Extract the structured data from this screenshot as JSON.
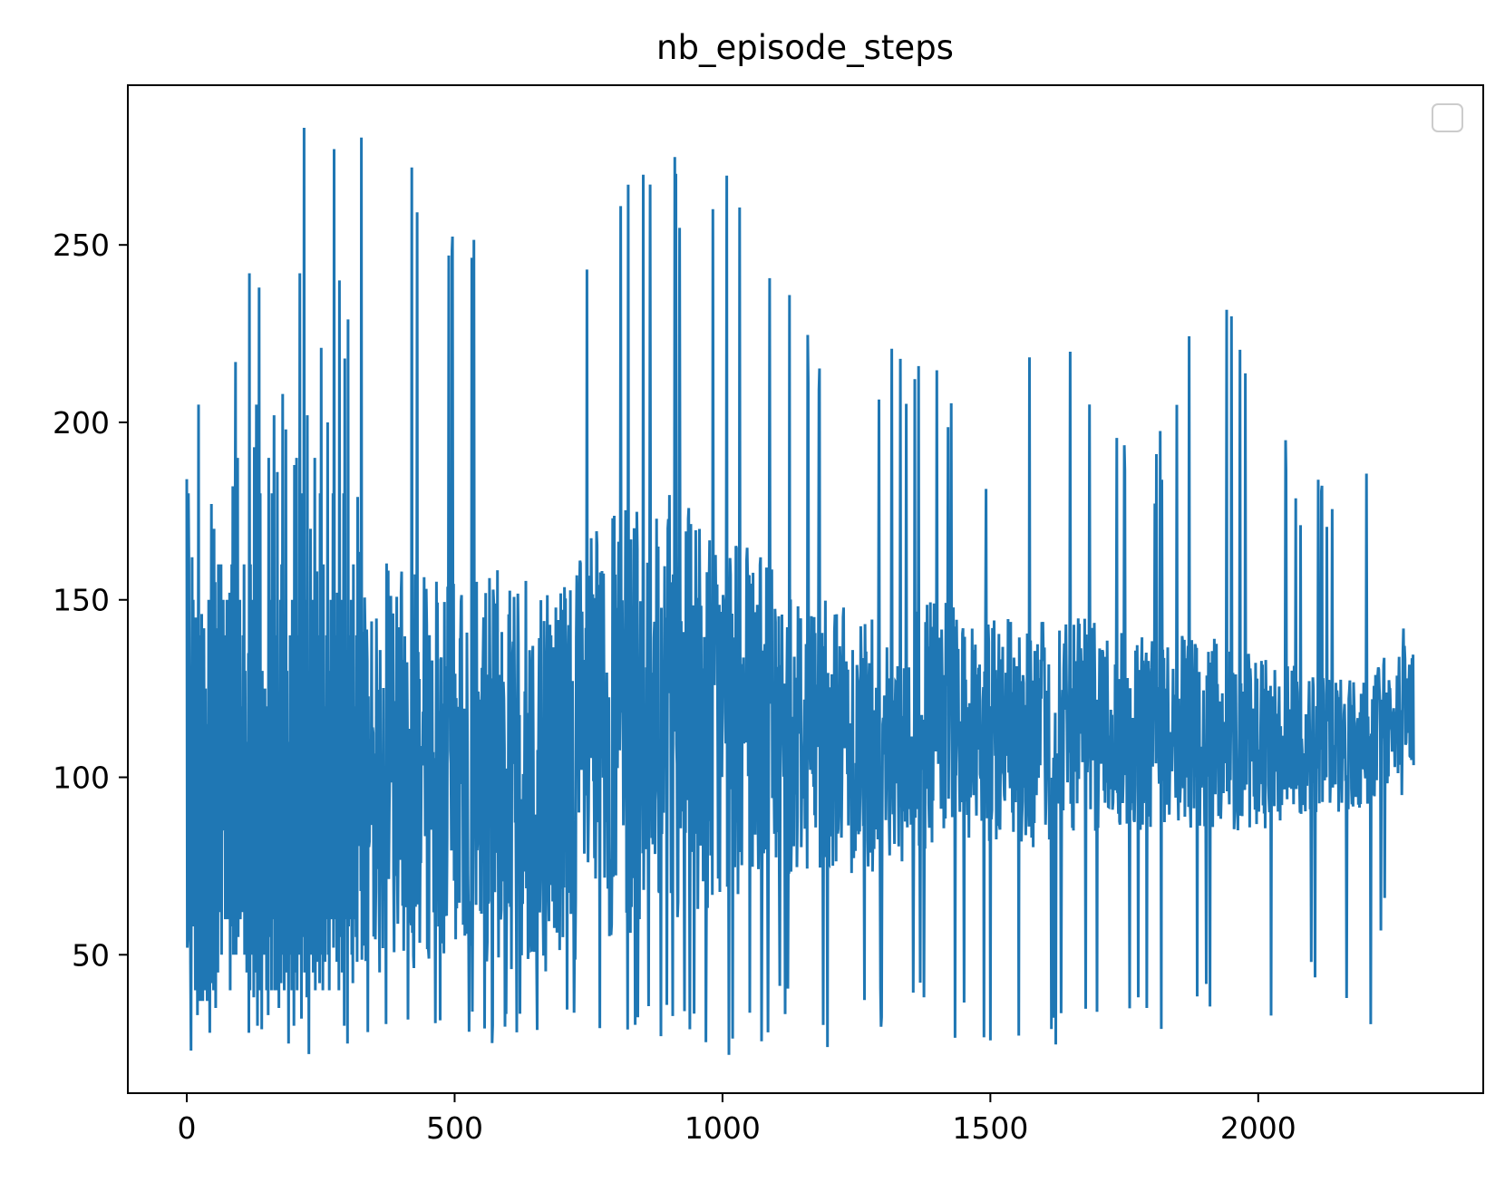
{
  "chart_data": {
    "type": "line",
    "title": "nb_episode_steps",
    "xlabel": "",
    "ylabel": "",
    "xlim": [
      -110,
      2420
    ],
    "ylim": [
      11,
      295
    ],
    "x_ticks": [
      0,
      500,
      1000,
      1500,
      2000
    ],
    "y_ticks": [
      50,
      100,
      150,
      200,
      250
    ],
    "x_tick_labels": [
      "0",
      "500",
      "1000",
      "1500",
      "2000"
    ],
    "y_tick_labels": [
      "50",
      "100",
      "150",
      "200",
      "250"
    ],
    "grid": false,
    "legend": {
      "placement": "top-right",
      "entries": []
    },
    "colors": {
      "series": "#1f77b4",
      "axes": "#000000",
      "legend_border": "#cccccc"
    },
    "series": [
      {
        "x_start": 0,
        "x_step": 1,
        "values": [
          184,
          52,
          55,
          180,
          160,
          70,
          120,
          48,
          23,
          100,
          162,
          58,
          150,
          72,
          130,
          95,
          40,
          145,
          60,
          110,
          33,
          78,
          205,
          45,
          140,
          37,
          120,
          90,
          146,
          60,
          37,
          100,
          142,
          88,
          40,
          125,
          80,
          60,
          37,
          115,
          66,
          150,
          60,
          28,
          120,
          96,
          177,
          42,
          85,
          160,
          40,
          170,
          60,
          155,
          35,
          100,
          142,
          75,
          45,
          160,
          62,
          105,
          120,
          68,
          160,
          50,
          130,
          90,
          150,
          85,
          100,
          140,
          60,
          120,
          80,
          150,
          100,
          60,
          115,
          90,
          152,
          40,
          130,
          70,
          160,
          58,
          182,
          50,
          120,
          90,
          160,
          217,
          50,
          140,
          70,
          190,
          55,
          110,
          80,
          150,
          60,
          100,
          120,
          62,
          90,
          140,
          70,
          160,
          50,
          130,
          80,
          100,
          45,
          110,
          60,
          135,
          28,
          242,
          40,
          160,
          70,
          120,
          50,
          100,
          150,
          38,
          193,
          60,
          120,
          45,
          205,
          90,
          30,
          150,
          70,
          238,
          40,
          180,
          60,
          110,
          29,
          130,
          50,
          90,
          120,
          60,
          125,
          50,
          110,
          40,
          80,
          120,
          33,
          190,
          55,
          100,
          70,
          150,
          40,
          180,
          90,
          60,
          120,
          202,
          40,
          140,
          70,
          110,
          40,
          186,
          60,
          100,
          35,
          120,
          70,
          150,
          42,
          160,
          90,
          208,
          50,
          120,
          40,
          100,
          75,
          198,
          45,
          130,
          60,
          90,
          25,
          110,
          50,
          140,
          70,
          100,
          40,
          150,
          60,
          120,
          30,
          188,
          60,
          100,
          45,
          190,
          40,
          120,
          70,
          140,
          50,
          242,
          60,
          100,
          32,
          180,
          55,
          120,
          70,
          283,
          45,
          110,
          60,
          150,
          38,
          202,
          60,
          100,
          22,
          130,
          70,
          170,
          50,
          100,
          60,
          150,
          45,
          110,
          70,
          190,
          40,
          120,
          60,
          158,
          48,
          140,
          70,
          100,
          42,
          180,
          60,
          221,
          50,
          110,
          40,
          160,
          70,
          120,
          48,
          100,
          60,
          140,
          75,
          200,
          50,
          130,
          40,
          110,
          60,
          150,
          70,
          100,
          60,
          180,
          52,
          277,
          60,
          140,
          70,
          100,
          48,
          152,
          60,
          110,
          40,
          240,
          55,
          100,
          70,
          150,
          45,
          120,
          60,
          180,
          30,
          218,
          60,
          120,
          70,
          100,
          25,
          229,
          58,
          140,
          60,
          110,
          70,
          150,
          50,
          100,
          42,
          160,
          70,
          120,
          60,
          100,
          55,
          140,
          48,
          179
        ]
      }
    ],
    "sampled_envelope": {
      "x_centers": [
        0,
        100,
        200,
        300,
        400,
        500,
        600,
        700,
        800,
        900,
        1000,
        1100,
        1200,
        1300,
        1400,
        1500,
        1600,
        1700,
        1800,
        1900,
        2000,
        2100,
        2200,
        2290
      ],
      "min": [
        22,
        27,
        28,
        22,
        25,
        30,
        22,
        22,
        22,
        25,
        18,
        28,
        22,
        28,
        30,
        17,
        17,
        28,
        28,
        28,
        30,
        40,
        20,
        102
      ],
      "max": [
        205,
        217,
        242,
        283,
        277,
        265,
        254,
        249,
        275,
        275,
        274,
        246,
        216,
        221,
        227,
        183,
        250,
        216,
        185,
        259,
        212,
        183,
        197,
        146
      ],
      "typical_low": [
        55,
        55,
        50,
        45,
        45,
        50,
        45,
        45,
        55,
        55,
        65,
        70,
        75,
        70,
        80,
        80,
        80,
        85,
        85,
        85,
        85,
        90,
        90,
        105
      ],
      "typical_high": [
        160,
        150,
        160,
        165,
        160,
        155,
        160,
        160,
        175,
        180,
        170,
        160,
        150,
        150,
        150,
        145,
        145,
        145,
        140,
        140,
        135,
        130,
        130,
        140
      ]
    }
  }
}
